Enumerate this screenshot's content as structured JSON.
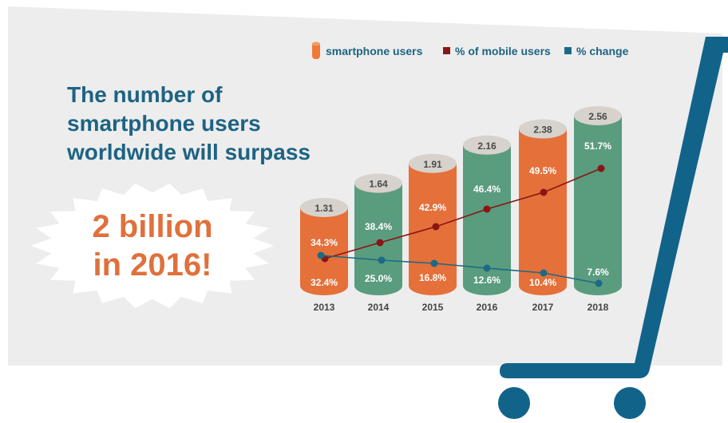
{
  "headline": {
    "lines": [
      "The number of",
      "smartphone users",
      "worldwide will surpass"
    ],
    "burst_lines": [
      "2 billion",
      "in 2016!"
    ]
  },
  "legend": [
    {
      "label": "smartphone users",
      "icon": "cylinder-icon",
      "color": "#EE7A36"
    },
    {
      "label": "% of mobile users",
      "icon": "square-icon",
      "color": "#8B1414"
    },
    {
      "label": "% change",
      "icon": "square-icon",
      "color": "#1C6A86"
    }
  ],
  "colors": {
    "orange": "#E5703A",
    "green": "#5A9C7E",
    "cap": "#D7D2CC",
    "headline": "#1D6384",
    "burst_text": "#E0703C",
    "cart": "#12638A",
    "panel": "#EDEDED"
  },
  "chart_data": {
    "type": "bar",
    "categories": [
      "2013",
      "2014",
      "2015",
      "2016",
      "2017",
      "2018"
    ],
    "series": [
      {
        "name": "smartphone users",
        "values": [
          1.31,
          1.64,
          1.91,
          2.16,
          2.38,
          2.56
        ]
      },
      {
        "name": "% of mobile users",
        "values": [
          34.3,
          38.4,
          42.9,
          46.4,
          49.5,
          51.7
        ]
      },
      {
        "name": "% change",
        "values": [
          32.4,
          25.0,
          16.8,
          12.6,
          10.4,
          7.6
        ]
      }
    ],
    "value_labels": [
      "1.31",
      "1.64",
      "1.91",
      "2.16",
      "2.38",
      "2.56"
    ],
    "pct_mobile_labels": [
      "34.3%",
      "38.4%",
      "42.9%",
      "46.4%",
      "49.5%",
      "51.7%"
    ],
    "pct_change_labels": [
      "32.4%",
      "25.0%",
      "16.8%",
      "12.6%",
      "10.4%",
      "7.6%"
    ],
    "bar_colors": [
      "orange",
      "green",
      "orange",
      "green",
      "orange",
      "green"
    ],
    "legend_placement": "top",
    "grid": false
  }
}
